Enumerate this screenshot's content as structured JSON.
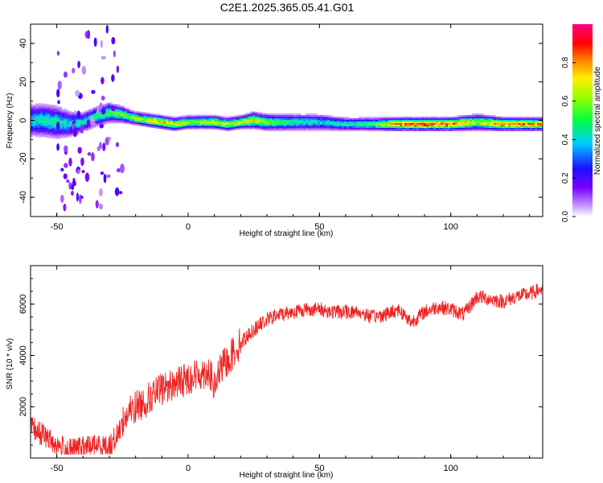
{
  "title": "C2E1.2025.365.05.41.G01",
  "colors": {
    "series": "#ee2222",
    "frame": "#000000",
    "background": "#ffffff"
  },
  "chart_data": [
    {
      "type": "heatmap",
      "xlabel": "Height of straight line (km)",
      "ylabel": "Frequency (Hz)",
      "xlim": [
        -60,
        135
      ],
      "ylim": [
        -50,
        50
      ],
      "xticks": [
        -50,
        0,
        50,
        100
      ],
      "yticks": [
        -40,
        -20,
        0,
        20,
        40
      ],
      "grid": false,
      "colorbar": {
        "label": "Normalized spectral amplitude",
        "range": [
          0,
          1
        ],
        "ticks": [
          "0.0",
          "0.2",
          "0.4",
          "0.6",
          "0.8"
        ],
        "colormap": "rainbow (white-violet-blue-cyan-green-yellow-orange-red-magenta)"
      },
      "ridge": {
        "x": [
          -60,
          -55,
          -50,
          -45,
          -40,
          -35,
          -30,
          -25,
          -20,
          -15,
          -10,
          -5,
          0,
          5,
          10,
          15,
          20,
          25,
          30,
          40,
          50,
          60,
          70,
          80,
          90,
          100,
          110,
          120,
          135
        ],
        "center_freq": [
          0,
          0,
          -1,
          -2,
          -1,
          2,
          4,
          3,
          1,
          0,
          -1,
          -2,
          -1,
          -1,
          -1,
          -2,
          -1,
          0,
          -1,
          -1,
          -1,
          -2,
          -2,
          -2,
          -2,
          -2,
          -1,
          -2,
          -2
        ],
        "amplitude": [
          0.4,
          0.45,
          0.45,
          0.4,
          0.45,
          0.5,
          0.55,
          0.55,
          0.6,
          0.7,
          0.75,
          0.7,
          0.6,
          0.65,
          0.7,
          0.65,
          0.65,
          0.7,
          0.55,
          0.45,
          0.4,
          0.45,
          0.5,
          0.85,
          0.9,
          0.85,
          0.6,
          0.85,
          0.8
        ],
        "width_hz": [
          10,
          10,
          10,
          8,
          6,
          6,
          6,
          5,
          4,
          4,
          4,
          4,
          4,
          4,
          4,
          4,
          4,
          5,
          5,
          5,
          5,
          4,
          4,
          4,
          4,
          4,
          5,
          4,
          4
        ]
      }
    },
    {
      "type": "line",
      "xlabel": "Height of straight line (km)",
      "ylabel": "SNR (10 * v/v)",
      "xlim": [
        -60,
        135
      ],
      "ylim": [
        0,
        7500
      ],
      "xticks": [
        -50,
        0,
        50,
        100
      ],
      "yticks": [
        2000,
        4000,
        6000
      ],
      "grid": false,
      "series": [
        {
          "x": [
            -60,
            -55,
            -50,
            -45,
            -40,
            -35,
            -30,
            -27,
            -25,
            -22,
            -20,
            -15,
            -10,
            -5,
            0,
            5,
            8,
            10,
            12,
            15,
            20,
            25,
            30,
            35,
            40,
            45,
            50,
            55,
            60,
            65,
            70,
            75,
            80,
            85,
            90,
            95,
            100,
            105,
            110,
            115,
            120,
            125,
            130,
            135
          ],
          "values": [
            1200,
            900,
            500,
            300,
            400,
            500,
            450,
            900,
            1400,
            1800,
            2000,
            2300,
            2700,
            2900,
            3100,
            3300,
            3400,
            2700,
            3400,
            3800,
            4500,
            5000,
            5400,
            5600,
            5700,
            5800,
            5800,
            5700,
            5700,
            5700,
            5500,
            5600,
            5800,
            5300,
            5700,
            5900,
            5800,
            5600,
            6300,
            6200,
            6100,
            6300,
            6400,
            6600
          ]
        }
      ]
    }
  ]
}
